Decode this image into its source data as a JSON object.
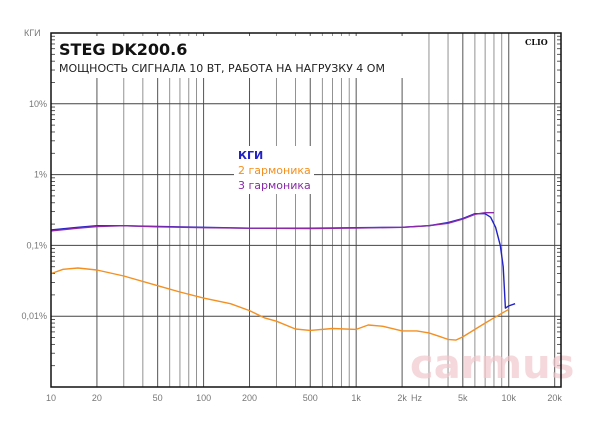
{
  "chart_data": {
    "type": "line",
    "title": "STEG DK200.6",
    "subtitle": "МОЩНОСТЬ СИГНАЛА 10 ВТ, РАБОТА НА НАГРУЗКУ 4 ОМ",
    "badge": "CLIO",
    "watermark": "carmus",
    "ylabel": "КГИ",
    "xlabel": "Hz",
    "xscale": "log",
    "yscale": "log",
    "xlim": [
      10,
      22000
    ],
    "ylim": [
      0.001,
      100
    ],
    "grid": true,
    "legend_position": "center-top",
    "x_ticks": [
      {
        "value": 10,
        "label": "10"
      },
      {
        "value": 20,
        "label": "20"
      },
      {
        "value": 50,
        "label": "50"
      },
      {
        "value": 100,
        "label": "100"
      },
      {
        "value": 200,
        "label": "200"
      },
      {
        "value": 500,
        "label": "500"
      },
      {
        "value": 1000,
        "label": "1k"
      },
      {
        "value": 2000,
        "label": "2k"
      },
      {
        "value": 5000,
        "label": "5k"
      },
      {
        "value": 10000,
        "label": "10k"
      },
      {
        "value": 20000,
        "label": "20k"
      }
    ],
    "y_ticks": [
      {
        "value": 10,
        "label": "10%"
      },
      {
        "value": 1,
        "label": "1%"
      },
      {
        "value": 0.1,
        "label": "0,1%"
      },
      {
        "value": 0.01,
        "label": "0,01%"
      }
    ],
    "series": [
      {
        "name": "КГИ",
        "color": "#2222c8",
        "x": [
          10,
          15,
          20,
          30,
          50,
          100,
          200,
          500,
          1000,
          2000,
          3000,
          4000,
          5000,
          6000,
          7000,
          7600,
          8200,
          8800,
          9200,
          9400,
          9500,
          10000,
          11000
        ],
        "y": [
          0.165,
          0.18,
          0.19,
          0.19,
          0.185,
          0.18,
          0.175,
          0.175,
          0.178,
          0.18,
          0.19,
          0.21,
          0.24,
          0.28,
          0.28,
          0.25,
          0.18,
          0.1,
          0.05,
          0.02,
          0.013,
          0.014,
          0.015
        ]
      },
      {
        "name": "2 гармоника",
        "color": "#f39021",
        "x": [
          10,
          12,
          15,
          20,
          30,
          50,
          70,
          100,
          150,
          200,
          250,
          300,
          400,
          500,
          700,
          1000,
          1200,
          1500,
          2000,
          2500,
          3000,
          3500,
          4000,
          4500,
          5000,
          6000,
          7000,
          8000,
          9000,
          10000
        ],
        "y": [
          0.04,
          0.046,
          0.048,
          0.045,
          0.037,
          0.027,
          0.022,
          0.018,
          0.015,
          0.012,
          0.0095,
          0.0085,
          0.0066,
          0.0063,
          0.0067,
          0.0065,
          0.0075,
          0.0072,
          0.0062,
          0.0062,
          0.0058,
          0.0052,
          0.0047,
          0.0046,
          0.0051,
          0.0065,
          0.008,
          0.0095,
          0.011,
          0.0125
        ]
      },
      {
        "name": "3 гармоника",
        "color": "#8a2aa8",
        "x": [
          10,
          15,
          20,
          30,
          50,
          100,
          200,
          500,
          1000,
          2000,
          3000,
          4000,
          5000,
          6000,
          7000,
          8000
        ],
        "y": [
          0.16,
          0.175,
          0.185,
          0.19,
          0.183,
          0.178,
          0.175,
          0.173,
          0.176,
          0.18,
          0.19,
          0.205,
          0.235,
          0.275,
          0.29,
          0.29
        ]
      }
    ]
  }
}
